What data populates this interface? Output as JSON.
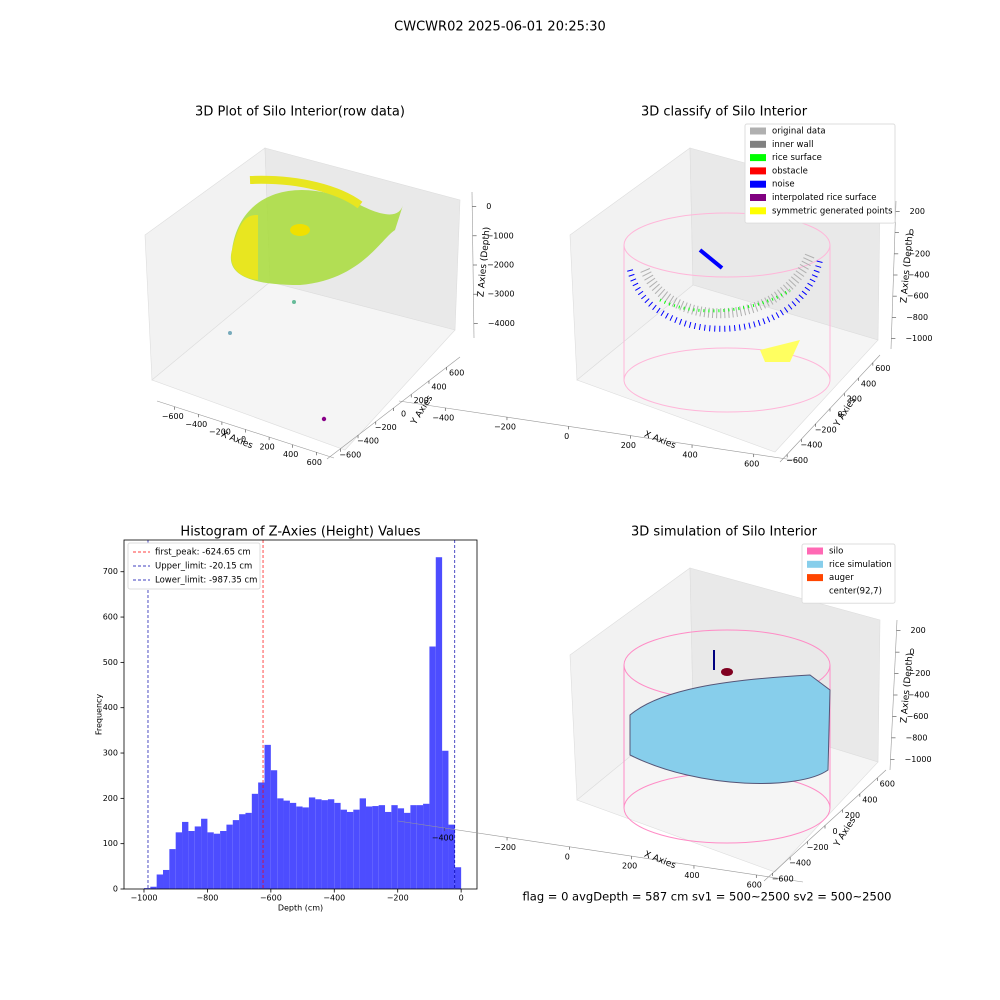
{
  "title": "CWCWR02 2025-06-01 20:25:30",
  "footer": "flag = 0     avgDepth = 587 cm  sv1 = 500~2500  sv2 = 500~2500",
  "chart_data": [
    {
      "type": "scatter3d",
      "title": "3D Plot of Silo Interior(row data)",
      "xlabel": "X Axies",
      "ylabel": "Y Axies",
      "zlabel": "Z Axies (Depth)",
      "xlim": [
        -750,
        750
      ],
      "ylim": [
        -750,
        750
      ],
      "zlim": [
        -4500,
        500
      ],
      "xticks": [
        {
          "value": -600,
          "label": "−600"
        },
        {
          "value": -400,
          "label": "−400"
        },
        {
          "value": -200,
          "label": "−200"
        },
        0,
        200,
        400,
        600
      ],
      "yticks": [
        {
          "value": -600,
          "label": "−600"
        },
        {
          "value": -400,
          "label": "−400"
        },
        {
          "value": -200,
          "label": "−200"
        },
        0,
        200,
        400,
        600
      ],
      "zticks": [
        0,
        {
          "value": -1000,
          "label": "−1000"
        },
        {
          "value": -2000,
          "label": "−2000"
        },
        {
          "value": -3000,
          "label": "−3000"
        },
        {
          "value": -4000,
          "label": "−4000"
        }
      ]
    },
    {
      "type": "scatter3d",
      "title": "3D classify of Silo Interior",
      "xlabel": "X Axies",
      "ylabel": "Y Axies",
      "zlabel": "Z Axies (Depth)",
      "xlim": [
        -550,
        750
      ],
      "ylim": [
        -700,
        700
      ],
      "zlim": [
        -1100,
        300
      ],
      "xticks": [
        {
          "value": -400,
          "label": "−400"
        },
        {
          "value": -200,
          "label": "−200"
        },
        0,
        200,
        400,
        600
      ],
      "yticks": [
        {
          "value": -600,
          "label": "−600"
        },
        {
          "value": -400,
          "label": "−400"
        },
        {
          "value": -200,
          "label": "−200"
        },
        0,
        200,
        400,
        600
      ],
      "zticks": [
        200,
        0,
        {
          "value": -200,
          "label": "−200"
        },
        {
          "value": -400,
          "label": "−400"
        },
        {
          "value": -600,
          "label": "−600"
        },
        {
          "value": -800,
          "label": "−800"
        },
        {
          "value": -1000,
          "label": "−1000"
        }
      ],
      "legend": "upper right",
      "series": [
        {
          "name": "original data",
          "color": "#b0b0b0"
        },
        {
          "name": "inner wall",
          "color": "#808080"
        },
        {
          "name": "rice surface",
          "color": "#00ff00"
        },
        {
          "name": "obstacle",
          "color": "#ff0000"
        },
        {
          "name": "noise",
          "color": "#0000ff"
        },
        {
          "name": "interpolated rice surface",
          "color": "#800080"
        },
        {
          "name": "symmetric generated points",
          "color": "#ffff00"
        }
      ]
    },
    {
      "type": "histogram",
      "title": "Histogram of Z-Axies (Height) Values",
      "xlabel": "Depth (cm)",
      "ylabel": "Frequency",
      "color": "#4d4dff",
      "bins": [
        -1000,
        -980,
        -960,
        -940,
        -920,
        -900,
        -880,
        -860,
        -840,
        -820,
        -800,
        -780,
        -760,
        -740,
        -720,
        -700,
        -680,
        -660,
        -640,
        -620,
        -600,
        -580,
        -560,
        -540,
        -520,
        -500,
        -480,
        -460,
        -440,
        -420,
        -400,
        -380,
        -360,
        -340,
        -320,
        -300,
        -280,
        -260,
        -240,
        -220,
        -200,
        -180,
        -160,
        -140,
        -120,
        -100,
        -80,
        -60,
        -40,
        -20,
        0
      ],
      "counts": [
        2,
        5,
        32,
        42,
        88,
        125,
        148,
        128,
        138,
        155,
        125,
        122,
        128,
        142,
        152,
        165,
        168,
        210,
        235,
        318,
        262,
        200,
        195,
        190,
        182,
        180,
        202,
        198,
        196,
        198,
        190,
        175,
        170,
        175,
        200,
        182,
        183,
        185,
        170,
        185,
        178,
        168,
        185,
        185,
        188,
        535,
        732,
        305,
        142,
        48
      ],
      "xlim": [
        -1063,
        50
      ],
      "ylim": [
        0,
        770
      ],
      "xticks": [
        {
          "value": -1000,
          "label": "−1000"
        },
        {
          "value": -800,
          "label": "−800"
        },
        {
          "value": -600,
          "label": "−600"
        },
        {
          "value": -400,
          "label": "−400"
        },
        {
          "value": -200,
          "label": "−200"
        },
        0
      ],
      "yticks": [
        0,
        100,
        200,
        300,
        400,
        500,
        600,
        700
      ],
      "legend": "upper left",
      "vlines": [
        {
          "name": "first_peak: -624.65 cm",
          "value": -624.65,
          "color": "#ff0000"
        },
        {
          "name": "Upper_limit: -20.15 cm",
          "value": -20.15,
          "color": "#0000aa"
        },
        {
          "name": "Lower_limit: -987.35 cm",
          "value": -987.35,
          "color": "#0000aa"
        }
      ]
    },
    {
      "type": "surface3d",
      "title": "3D simulation of Silo Interior",
      "xlabel": "X Axies",
      "ylabel": "Y Axies",
      "zlabel": "Z Axies (Depth)",
      "xlim": [
        -550,
        750
      ],
      "ylim": [
        -700,
        700
      ],
      "zlim": [
        -1100,
        300
      ],
      "xticks": [
        {
          "value": -400,
          "label": "−400"
        },
        {
          "value": -200,
          "label": "−200"
        },
        0,
        200,
        400,
        600
      ],
      "yticks": [
        {
          "value": -600,
          "label": "−600"
        },
        {
          "value": -400,
          "label": "−400"
        },
        {
          "value": -200,
          "label": "−200"
        },
        0,
        200,
        400,
        600
      ],
      "zticks": [
        200,
        0,
        {
          "value": -200,
          "label": "−200"
        },
        {
          "value": -400,
          "label": "−400"
        },
        {
          "value": -600,
          "label": "−600"
        },
        {
          "value": -800,
          "label": "−800"
        },
        {
          "value": -1000,
          "label": "−1000"
        }
      ],
      "legend": "upper right",
      "series": [
        {
          "name": "silo",
          "color": "#ff69b4"
        },
        {
          "name": "rice simulation",
          "color": "#87ceeb"
        },
        {
          "name": "auger",
          "color": "#ff4500"
        },
        {
          "name": "center(92,7)",
          "color": "#ffffff"
        }
      ]
    }
  ]
}
